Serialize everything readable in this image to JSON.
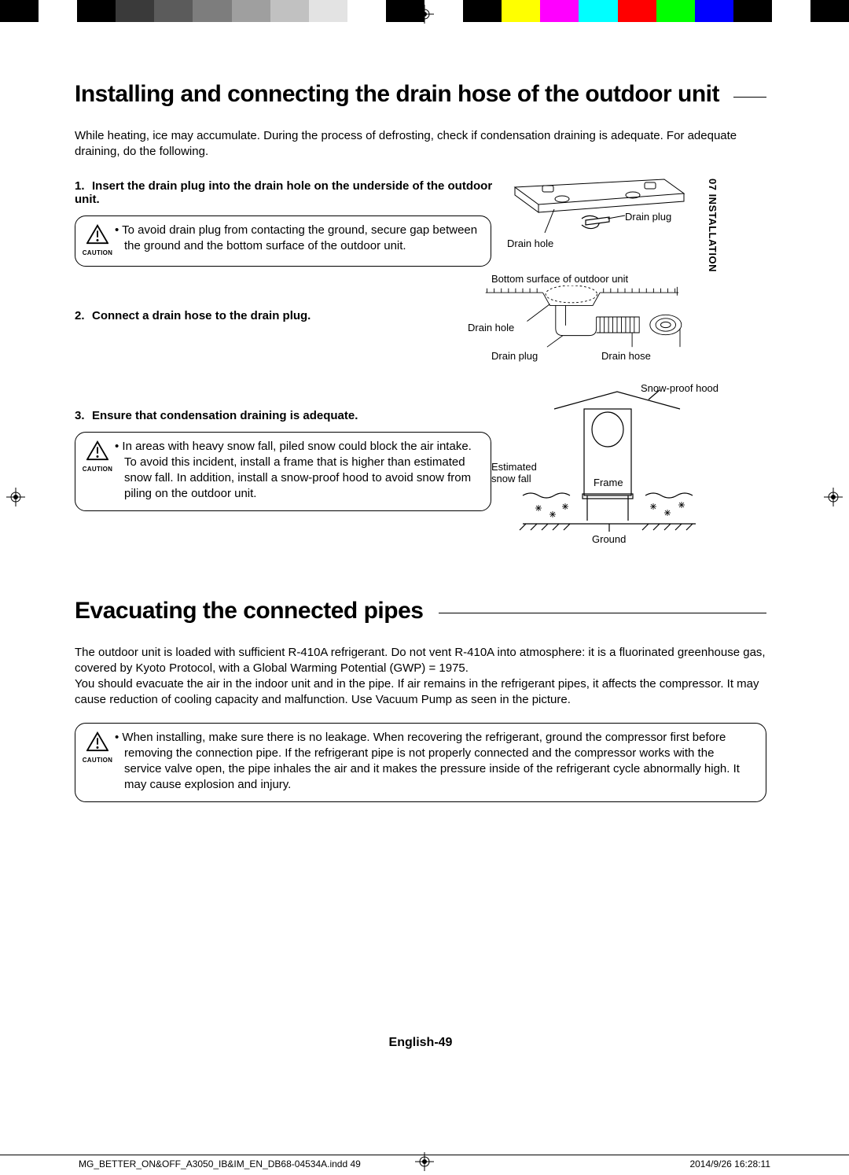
{
  "colorbar": [
    "#000000",
    "#ffffff",
    "#000000",
    "#3a3a3a",
    "#5b5b5b",
    "#7d7d7d",
    "#9f9f9f",
    "#c1c1c1",
    "#e3e3e3",
    "#ffffff",
    "#000000",
    "#ffffff",
    "#000000",
    "#ffff00",
    "#ff00ff",
    "#00ffff",
    "#ff0000",
    "#00ff00",
    "#0000ff",
    "#000000",
    "#ffffff",
    "#000000"
  ],
  "side_tab": "07  INSTALLATION",
  "title1": "Installing and connecting the drain hose of the outdoor unit",
  "intro1": "While heating, ice may accumulate. During the process of defrosting, check if condensation draining is adequate.  For adequate draining, do the following.",
  "steps": {
    "s1": "Insert the drain plug into the drain hole on the underside of the outdoor unit.",
    "s2": "Connect a drain hose to the drain plug.",
    "s3": "Ensure that condensation draining is adequate."
  },
  "caution_label": "CAUTION",
  "caution1": "To avoid drain plug from contacting the ground, secure gap between the ground and the bottom surface of the outdoor unit.",
  "caution2": "In areas with heavy snow fall, piled snow could block the air intake.\nTo avoid this incident, install a frame that is higher than estimated snow fall. In addition, install a snow-proof hood to avoid snow from piling on the outdoor unit.",
  "caution3": "When installing, make sure there is no leakage. When recovering the refrigerant, ground the compressor first before removing the connection pipe. If the refrigerant pipe is not properly connected and the compressor works with the service valve open, the pipe inhales the air and it makes the pressure inside of the refrigerant cycle abnormally high. It may cause explosion and injury.",
  "fig1": {
    "drain_hole": "Drain hole",
    "drain_plug": "Drain plug"
  },
  "fig2": {
    "bottom": "Bottom surface of outdoor unit",
    "drain_hole": "Drain hole",
    "drain_plug": "Drain plug",
    "drain_hose": "Drain hose"
  },
  "fig3": {
    "hood": "Snow-proof hood",
    "snow": "Estimated snow fall",
    "frame": "Frame",
    "ground": "Ground"
  },
  "title2": "Evacuating the connected pipes",
  "intro2a": "The outdoor unit is loaded with sufficient R-410A refrigerant. Do not vent R-410A into atmosphere: it is a fluorinated greenhouse gas, covered by Kyoto Protocol, with a Global Warming Potential (GWP) = 1975.",
  "intro2b": "You should evacuate the air in the indoor unit and in the pipe. If air remains in the refrigerant pipes, it affects the compressor. It may cause reduction of cooling capacity and malfunction. Use Vacuum Pump as seen in the picture.",
  "footer_page": "English-49",
  "footer_file": "MG_BETTER_ON&OFF_A3050_IB&IM_EN_DB68-04534A.indd   49",
  "footer_date": "2014/9/26   16:28:11"
}
